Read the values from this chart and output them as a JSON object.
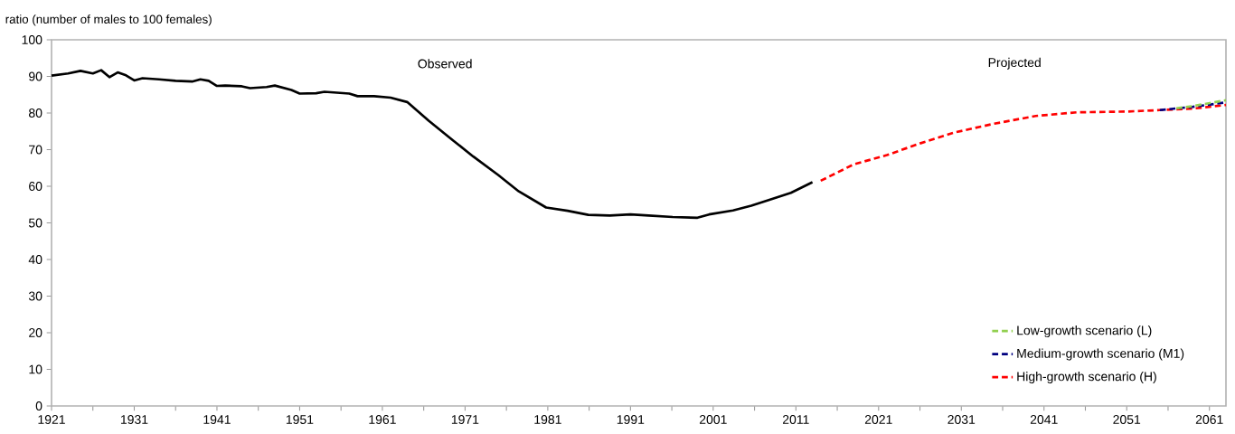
{
  "chart_data": {
    "type": "line",
    "ylabel": "ratio (number of males to 100 females)",
    "annotations": [
      "Observed",
      "Projected"
    ],
    "xlim": [
      1921,
      2063
    ],
    "ylim": [
      0,
      100
    ],
    "xticks": [
      1921,
      {
        "value": 1926,
        "label": null
      },
      1931,
      {
        "value": 1936,
        "label": null
      },
      1941,
      {
        "value": 1946,
        "label": null
      },
      1951,
      {
        "value": 1956,
        "label": null
      },
      1961,
      {
        "value": 1966,
        "label": null
      },
      1971,
      {
        "value": 1976,
        "label": null
      },
      1981,
      {
        "value": 1986,
        "label": null
      },
      1991,
      {
        "value": 1996,
        "label": null
      },
      2001,
      {
        "value": 2006,
        "label": null
      },
      2011,
      {
        "value": 2016,
        "label": null
      },
      2021,
      {
        "value": 2026,
        "label": null
      },
      2031,
      {
        "value": 2036,
        "label": null
      },
      2041,
      {
        "value": 2046,
        "label": null
      },
      2051,
      {
        "value": 2056,
        "label": null
      },
      2061
    ],
    "yticks": [
      0,
      10,
      20,
      30,
      40,
      50,
      60,
      70,
      80,
      90,
      100
    ],
    "grid": false,
    "legend": "bottom right",
    "marker": "none",
    "series": [
      {
        "color": "#000000",
        "line_style": "solid",
        "x": [
          1921,
          1923,
          1924.5,
          1926,
          1927,
          1928,
          1929,
          1930,
          1931,
          1932,
          1934,
          1936,
          1938,
          1939,
          1940,
          1941,
          1942,
          1944,
          1945,
          1947,
          1948,
          1950,
          1951,
          1953,
          1954,
          1957,
          1958,
          1960,
          1962,
          1964,
          1966.6,
          1969.5,
          1972,
          1975,
          1977.5,
          1980.8,
          1983.4,
          1985.9,
          1988.5,
          1991,
          1993.2,
          1996.1,
          1999.1,
          2000.5,
          2003.4,
          2005.6,
          2007.8,
          2010.4,
          2013
        ],
        "values": [
          90.2,
          90.8,
          91.5,
          90.8,
          91.7,
          89.8,
          91.1,
          90.3,
          88.9,
          89.5,
          89.2,
          88.8,
          88.6,
          89.2,
          88.8,
          87.4,
          87.5,
          87.3,
          86.8,
          87.1,
          87.5,
          86.3,
          85.3,
          85.4,
          85.8,
          85.3,
          84.6,
          84.6,
          84.2,
          83.0,
          77.9,
          72.6,
          68.1,
          63.1,
          58.6,
          54.2,
          53.3,
          52.2,
          52.0,
          52.3,
          52.0,
          51.6,
          51.4,
          52.3,
          53.4,
          54.7,
          56.3,
          58.2,
          61.1
        ]
      },
      {
        "name": "Low-growth scenario (L)",
        "color": "#92d050",
        "line_style": "dashed",
        "x": [
          2057,
          2059,
          2063
        ],
        "values": [
          81.3,
          81.9,
          83.5
        ]
      },
      {
        "name": "Medium-growth scenario (M1)",
        "color": "#000080",
        "line_style": "dashed",
        "x": [
          2055,
          2059,
          2063
        ],
        "values": [
          80.8,
          81.7,
          82.9
        ]
      },
      {
        "name": "High-growth scenario (H)",
        "color": "#ff0000",
        "line_style": "dashed",
        "x": [
          2014,
          2018,
          2022,
          2026,
          2030,
          2035,
          2040,
          2045,
          2051,
          2055,
          2059,
          2063
        ],
        "values": [
          61.5,
          66.0,
          68.5,
          71.7,
          74.6,
          77.1,
          79.2,
          80.2,
          80.4,
          80.8,
          81.2,
          82.2
        ]
      }
    ]
  }
}
